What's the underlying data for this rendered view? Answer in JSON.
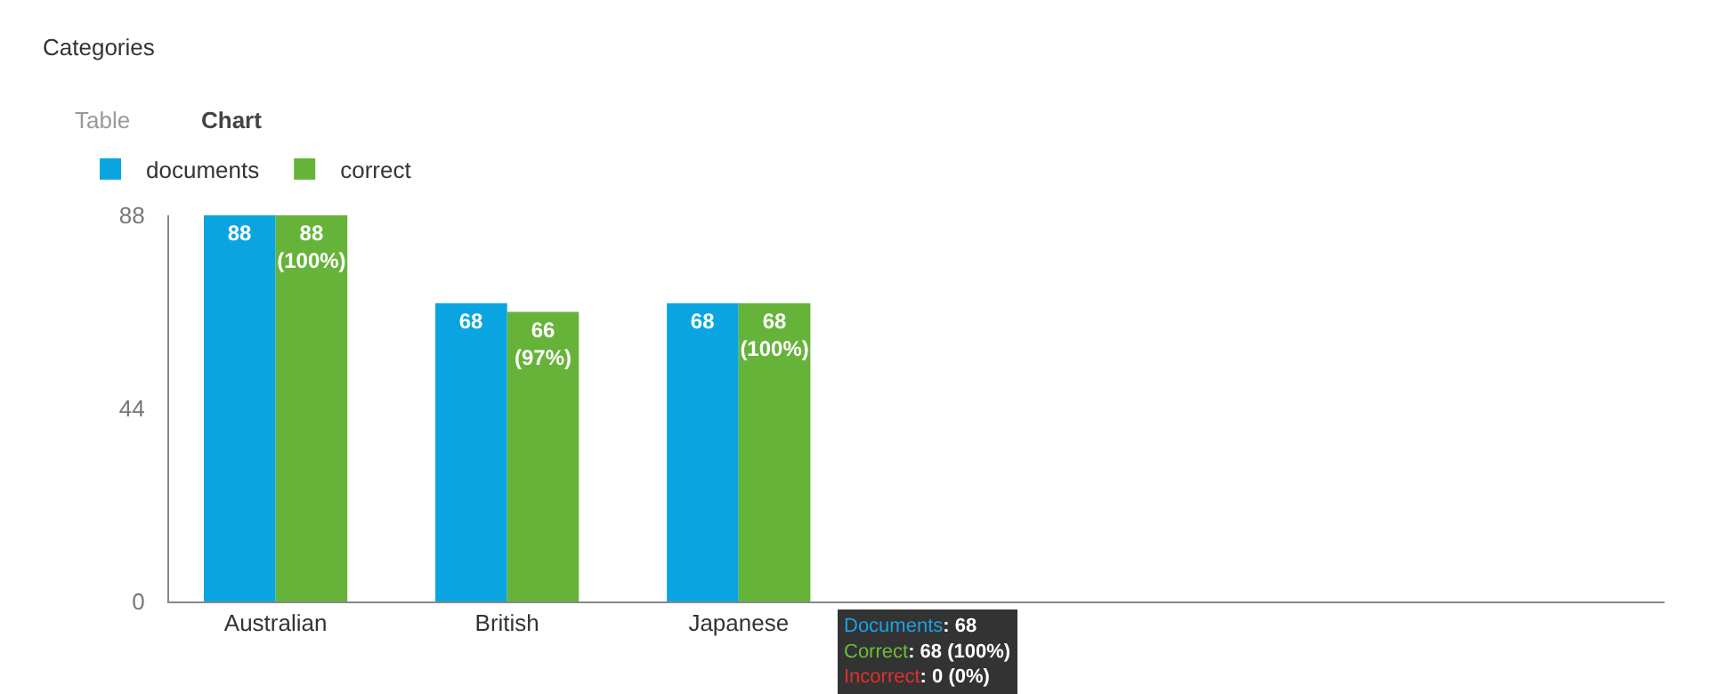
{
  "chart_data": {
    "type": "bar",
    "title": "Categories",
    "categories": [
      "Australian",
      "British",
      "Japanese"
    ],
    "series": [
      {
        "name": "documents",
        "color": "#0aa5e0",
        "values": [
          88,
          68,
          68
        ],
        "value_labels": [
          "88",
          "68",
          "68"
        ]
      },
      {
        "name": "correct",
        "color": "#66b33a",
        "values": [
          88,
          66,
          68
        ],
        "value_labels": [
          "88 (100%)",
          "66 (97%)",
          "68 (100%)"
        ]
      }
    ],
    "ylim": [
      0,
      88
    ],
    "yticks": [
      0,
      44,
      88
    ],
    "legend": "top left",
    "annotations": [
      "Table",
      "Chart",
      "Documents: 68\nCorrect: 68 (100%)\nIncorrect: 0 (0%)"
    ]
  }
}
